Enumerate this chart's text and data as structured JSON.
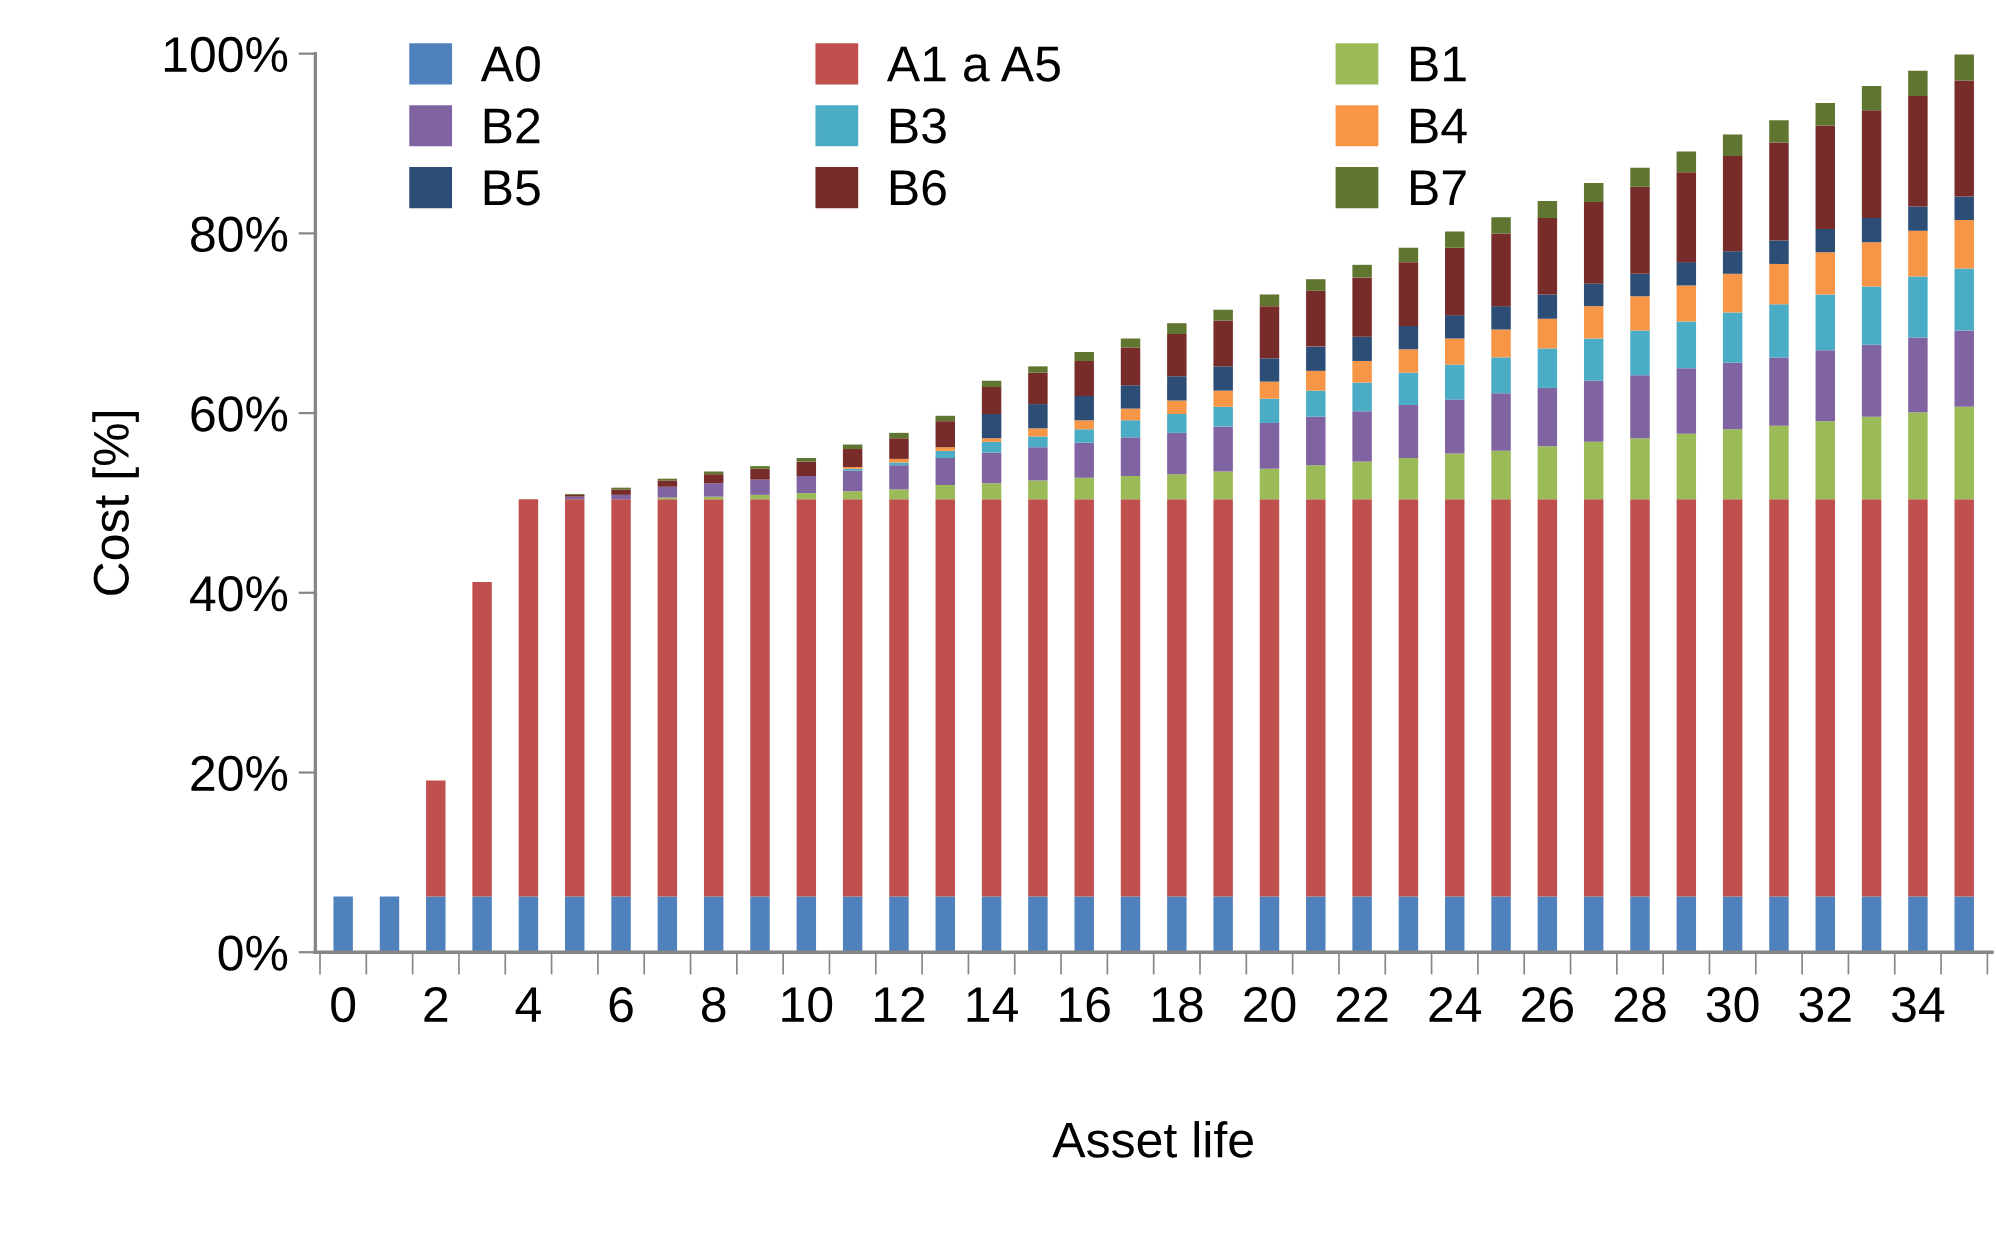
{
  "chart_data": {
    "type": "bar",
    "stacked": true,
    "xlabel": "Asset life",
    "ylabel": "Cost [%]",
    "categories": [
      "0",
      null,
      "2",
      null,
      "4",
      null,
      "6",
      null,
      "8",
      null,
      "10",
      null,
      "12",
      null,
      "14",
      null,
      "16",
      null,
      "18",
      null,
      "20",
      null,
      "22",
      null,
      "24",
      null,
      "26",
      null,
      "28",
      null,
      "30",
      null,
      "32",
      null,
      "34",
      null
    ],
    "ylim": [
      0,
      100
    ],
    "yticks": [
      {
        "value": 0,
        "label": "0%"
      },
      {
        "value": 20,
        "label": "20%"
      },
      {
        "value": 40,
        "label": "40%"
      },
      {
        "value": 60,
        "label": "60%"
      },
      {
        "value": 80,
        "label": "80%"
      },
      {
        "value": 100,
        "label": "100%"
      }
    ],
    "grid": false,
    "legend": "top",
    "series": [
      {
        "name": "A0",
        "color": "#4f81bd",
        "values": [
          6.2,
          6.2,
          6.2,
          6.2,
          6.2,
          6.2,
          6.2,
          6.2,
          6.2,
          6.2,
          6.2,
          6.2,
          6.2,
          6.2,
          6.2,
          6.2,
          6.2,
          6.2,
          6.2,
          6.2,
          6.2,
          6.2,
          6.2,
          6.2,
          6.2,
          6.2,
          6.2,
          6.2,
          6.2,
          6.2,
          6.2,
          6.2,
          6.2,
          6.2,
          6.2,
          6.2
        ]
      },
      {
        "name": "A1 a A5",
        "color": "#c0504d",
        "values": [
          0,
          0,
          12.9,
          35.0,
          44.2,
          44.2,
          44.2,
          44.2,
          44.2,
          44.2,
          44.2,
          44.2,
          44.2,
          44.2,
          44.2,
          44.2,
          44.2,
          44.2,
          44.2,
          44.2,
          44.2,
          44.2,
          44.2,
          44.2,
          44.2,
          44.2,
          44.2,
          44.2,
          44.2,
          44.2,
          44.2,
          44.2,
          44.2,
          44.2,
          44.2,
          44.2
        ]
      },
      {
        "name": "B1",
        "color": "#9bbb59",
        "values": [
          0,
          0,
          0,
          0,
          0,
          0,
          0,
          0.2,
          0.3,
          0.5,
          0.7,
          0.9,
          1.1,
          1.6,
          1.8,
          2.1,
          2.4,
          2.6,
          2.8,
          3.1,
          3.4,
          3.8,
          4.2,
          4.6,
          5.1,
          5.4,
          5.9,
          6.4,
          6.8,
          7.3,
          7.8,
          8.2,
          8.7,
          9.2,
          9.7,
          10.3
        ]
      },
      {
        "name": "B2",
        "color": "#8064a2",
        "values": [
          0,
          0,
          0,
          0,
          0,
          0.3,
          0.5,
          1.2,
          1.5,
          1.7,
          1.9,
          2.3,
          2.7,
          3.0,
          3.4,
          3.7,
          3.9,
          4.3,
          4.6,
          5.0,
          5.1,
          5.4,
          5.6,
          5.9,
          6.0,
          6.4,
          6.5,
          6.8,
          7.0,
          7.3,
          7.4,
          7.6,
          7.9,
          8.0,
          8.3,
          8.5
        ]
      },
      {
        "name": "B3",
        "color": "#4bacc6",
        "values": [
          0,
          0,
          0,
          0,
          0,
          0,
          0,
          0,
          0,
          0,
          0,
          0.2,
          0.3,
          0.8,
          1.2,
          1.2,
          1.5,
          1.9,
          2.1,
          2.2,
          2.7,
          2.9,
          3.2,
          3.6,
          3.9,
          4.0,
          4.4,
          4.7,
          5.0,
          5.2,
          5.6,
          5.9,
          6.2,
          6.5,
          6.8,
          6.9
        ]
      },
      {
        "name": "B4",
        "color": "#f79646",
        "values": [
          0,
          0,
          0,
          0,
          0,
          0,
          0,
          0,
          0,
          0,
          0,
          0.2,
          0.4,
          0.4,
          0.4,
          0.9,
          1.0,
          1.3,
          1.5,
          1.8,
          1.9,
          2.2,
          2.4,
          2.6,
          2.9,
          3.1,
          3.3,
          3.6,
          3.8,
          4.0,
          4.3,
          4.5,
          4.7,
          4.9,
          5.1,
          5.4
        ]
      },
      {
        "name": "B5",
        "color": "#2c4d75",
        "values": [
          0,
          0,
          0,
          0,
          0,
          0,
          0,
          0,
          0,
          0,
          0,
          0,
          0,
          0,
          2.7,
          2.7,
          2.7,
          2.6,
          2.7,
          2.7,
          2.6,
          2.7,
          2.7,
          2.6,
          2.6,
          2.6,
          2.7,
          2.5,
          2.5,
          2.6,
          2.5,
          2.6,
          2.6,
          2.7,
          2.7,
          2.6
        ]
      },
      {
        "name": "B6",
        "color": "#772c2a",
        "values": [
          0,
          0,
          0,
          0,
          0,
          0.2,
          0.6,
          0.7,
          1.0,
          1.2,
          1.6,
          2.0,
          2.3,
          2.9,
          3.0,
          3.5,
          3.9,
          4.2,
          4.7,
          5.1,
          5.8,
          6.2,
          6.6,
          7.1,
          7.5,
          8.1,
          8.5,
          9.1,
          9.7,
          10.0,
          10.6,
          10.9,
          11.5,
          12.0,
          12.3,
          12.9
        ]
      },
      {
        "name": "B7",
        "color": "#5f7530",
        "values": [
          0,
          0,
          0,
          0,
          0,
          0.1,
          0.2,
          0.2,
          0.3,
          0.3,
          0.4,
          0.5,
          0.6,
          0.6,
          0.7,
          0.7,
          1.0,
          1.0,
          1.2,
          1.2,
          1.3,
          1.3,
          1.4,
          1.6,
          1.8,
          1.8,
          1.9,
          2.1,
          2.1,
          2.3,
          2.4,
          2.5,
          2.5,
          2.7,
          2.8,
          2.9
        ]
      }
    ]
  }
}
